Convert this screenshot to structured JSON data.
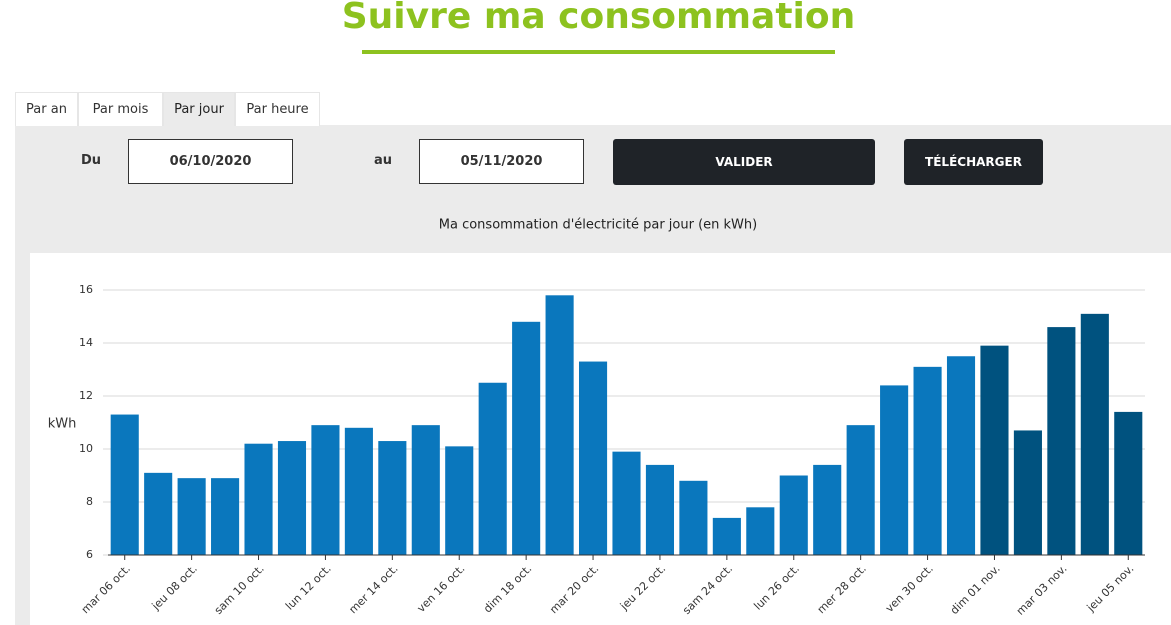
{
  "header": {
    "title": "Suivre ma consommation"
  },
  "tabs": [
    "Par an",
    "Par mois",
    "Par jour",
    "Par heure"
  ],
  "active_tab_index": 2,
  "form": {
    "from_label": "Du",
    "from_value": "06/10/2020",
    "to_label": "au",
    "to_value": "05/11/2020",
    "submit": "VALIDER",
    "download": "TÉLÉCHARGER"
  },
  "chart_data": {
    "type": "bar",
    "title": "Ma consommation d'électricité par jour (en kWh)",
    "y_label": "kWh",
    "categories": [
      "mar 06 oct.",
      null,
      "jeu 08 oct.",
      null,
      "sam 10 oct.",
      null,
      "lun 12 oct.",
      null,
      "mer 14 oct.",
      null,
      "ven 16 oct.",
      null,
      "dim 18 oct.",
      null,
      "mar 20 oct.",
      null,
      "jeu 22 oct.",
      null,
      "sam 24 oct.",
      null,
      "lun 26 oct.",
      null,
      "mer 28 oct.",
      null,
      "ven 30 oct.",
      null,
      "dim 01 nov.",
      null,
      "mar 03 nov.",
      null,
      "jeu 05 nov."
    ],
    "values": [
      11.3,
      9.1,
      8.9,
      8.9,
      10.2,
      10.3,
      10.9,
      10.8,
      10.3,
      10.9,
      10.1,
      12.5,
      14.8,
      15.8,
      13.3,
      9.9,
      9.4,
      8.8,
      7.4,
      7.8,
      9.0,
      9.4,
      10.9,
      12.4,
      13.1,
      13.5,
      13.9,
      10.7,
      14.6,
      15.1,
      11.4
    ],
    "bar_colors": [
      "#0a77bd",
      "#0a77bd",
      "#0a77bd",
      "#0a77bd",
      "#0a77bd",
      "#0a77bd",
      "#0a77bd",
      "#0a77bd",
      "#0a77bd",
      "#0a77bd",
      "#0a77bd",
      "#0a77bd",
      "#0a77bd",
      "#0a77bd",
      "#0a77bd",
      "#0a77bd",
      "#0a77bd",
      "#0a77bd",
      "#0a77bd",
      "#0a77bd",
      "#0a77bd",
      "#0a77bd",
      "#0a77bd",
      "#0a77bd",
      "#0a77bd",
      "#0a77bd",
      "#00527f",
      "#00527f",
      "#00527f",
      "#00527f",
      "#00527f"
    ],
    "ylim": [
      6,
      16
    ],
    "yticks": [
      6,
      8,
      10,
      12,
      14,
      16
    ],
    "grid": true
  }
}
